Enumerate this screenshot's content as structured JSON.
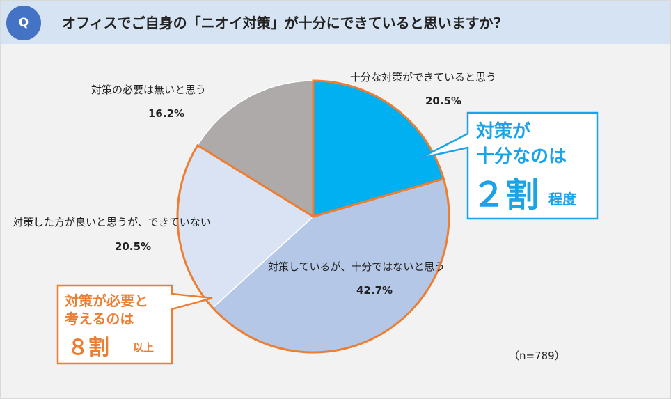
{
  "header": {
    "badge": "Q",
    "question": "オフィスでご自身の「ニオイ対策」が十分にできていると思いますか?"
  },
  "chart_data": {
    "type": "pie",
    "title": "オフィスでご自身の「ニオイ対策」が十分にできていると思いますか?",
    "sample": "（n=789）",
    "slices": [
      {
        "label": "十分な対策ができていると思う",
        "value": 20.5,
        "display": "20.5%",
        "color": "#00b0f0"
      },
      {
        "label": "対策しているが、十分ではないと思う",
        "value": 42.7,
        "display": "42.7%",
        "color": "#b4c7e7"
      },
      {
        "label": "対策した方が良いと思うが、できていない",
        "value": 20.5,
        "display": "20.5%",
        "color": "#dae3f3"
      },
      {
        "label": "対策の必要は無いと思う",
        "value": 16.2,
        "display": "16.2%",
        "color": "#aeaaaa"
      }
    ],
    "highlight_colors": {
      "blue_outline": "#ed7d31",
      "orange_outline": "#ed7d31"
    }
  },
  "callouts": {
    "blue": {
      "line1": "対策が",
      "line2": "十分なのは",
      "number": "２割",
      "suffix": "程度",
      "color": "#1aa3e8"
    },
    "orange": {
      "line1": "対策が必要と",
      "line2": "考えるのは",
      "number": "８割",
      "suffix": "以上",
      "color": "#ed7d31"
    }
  }
}
